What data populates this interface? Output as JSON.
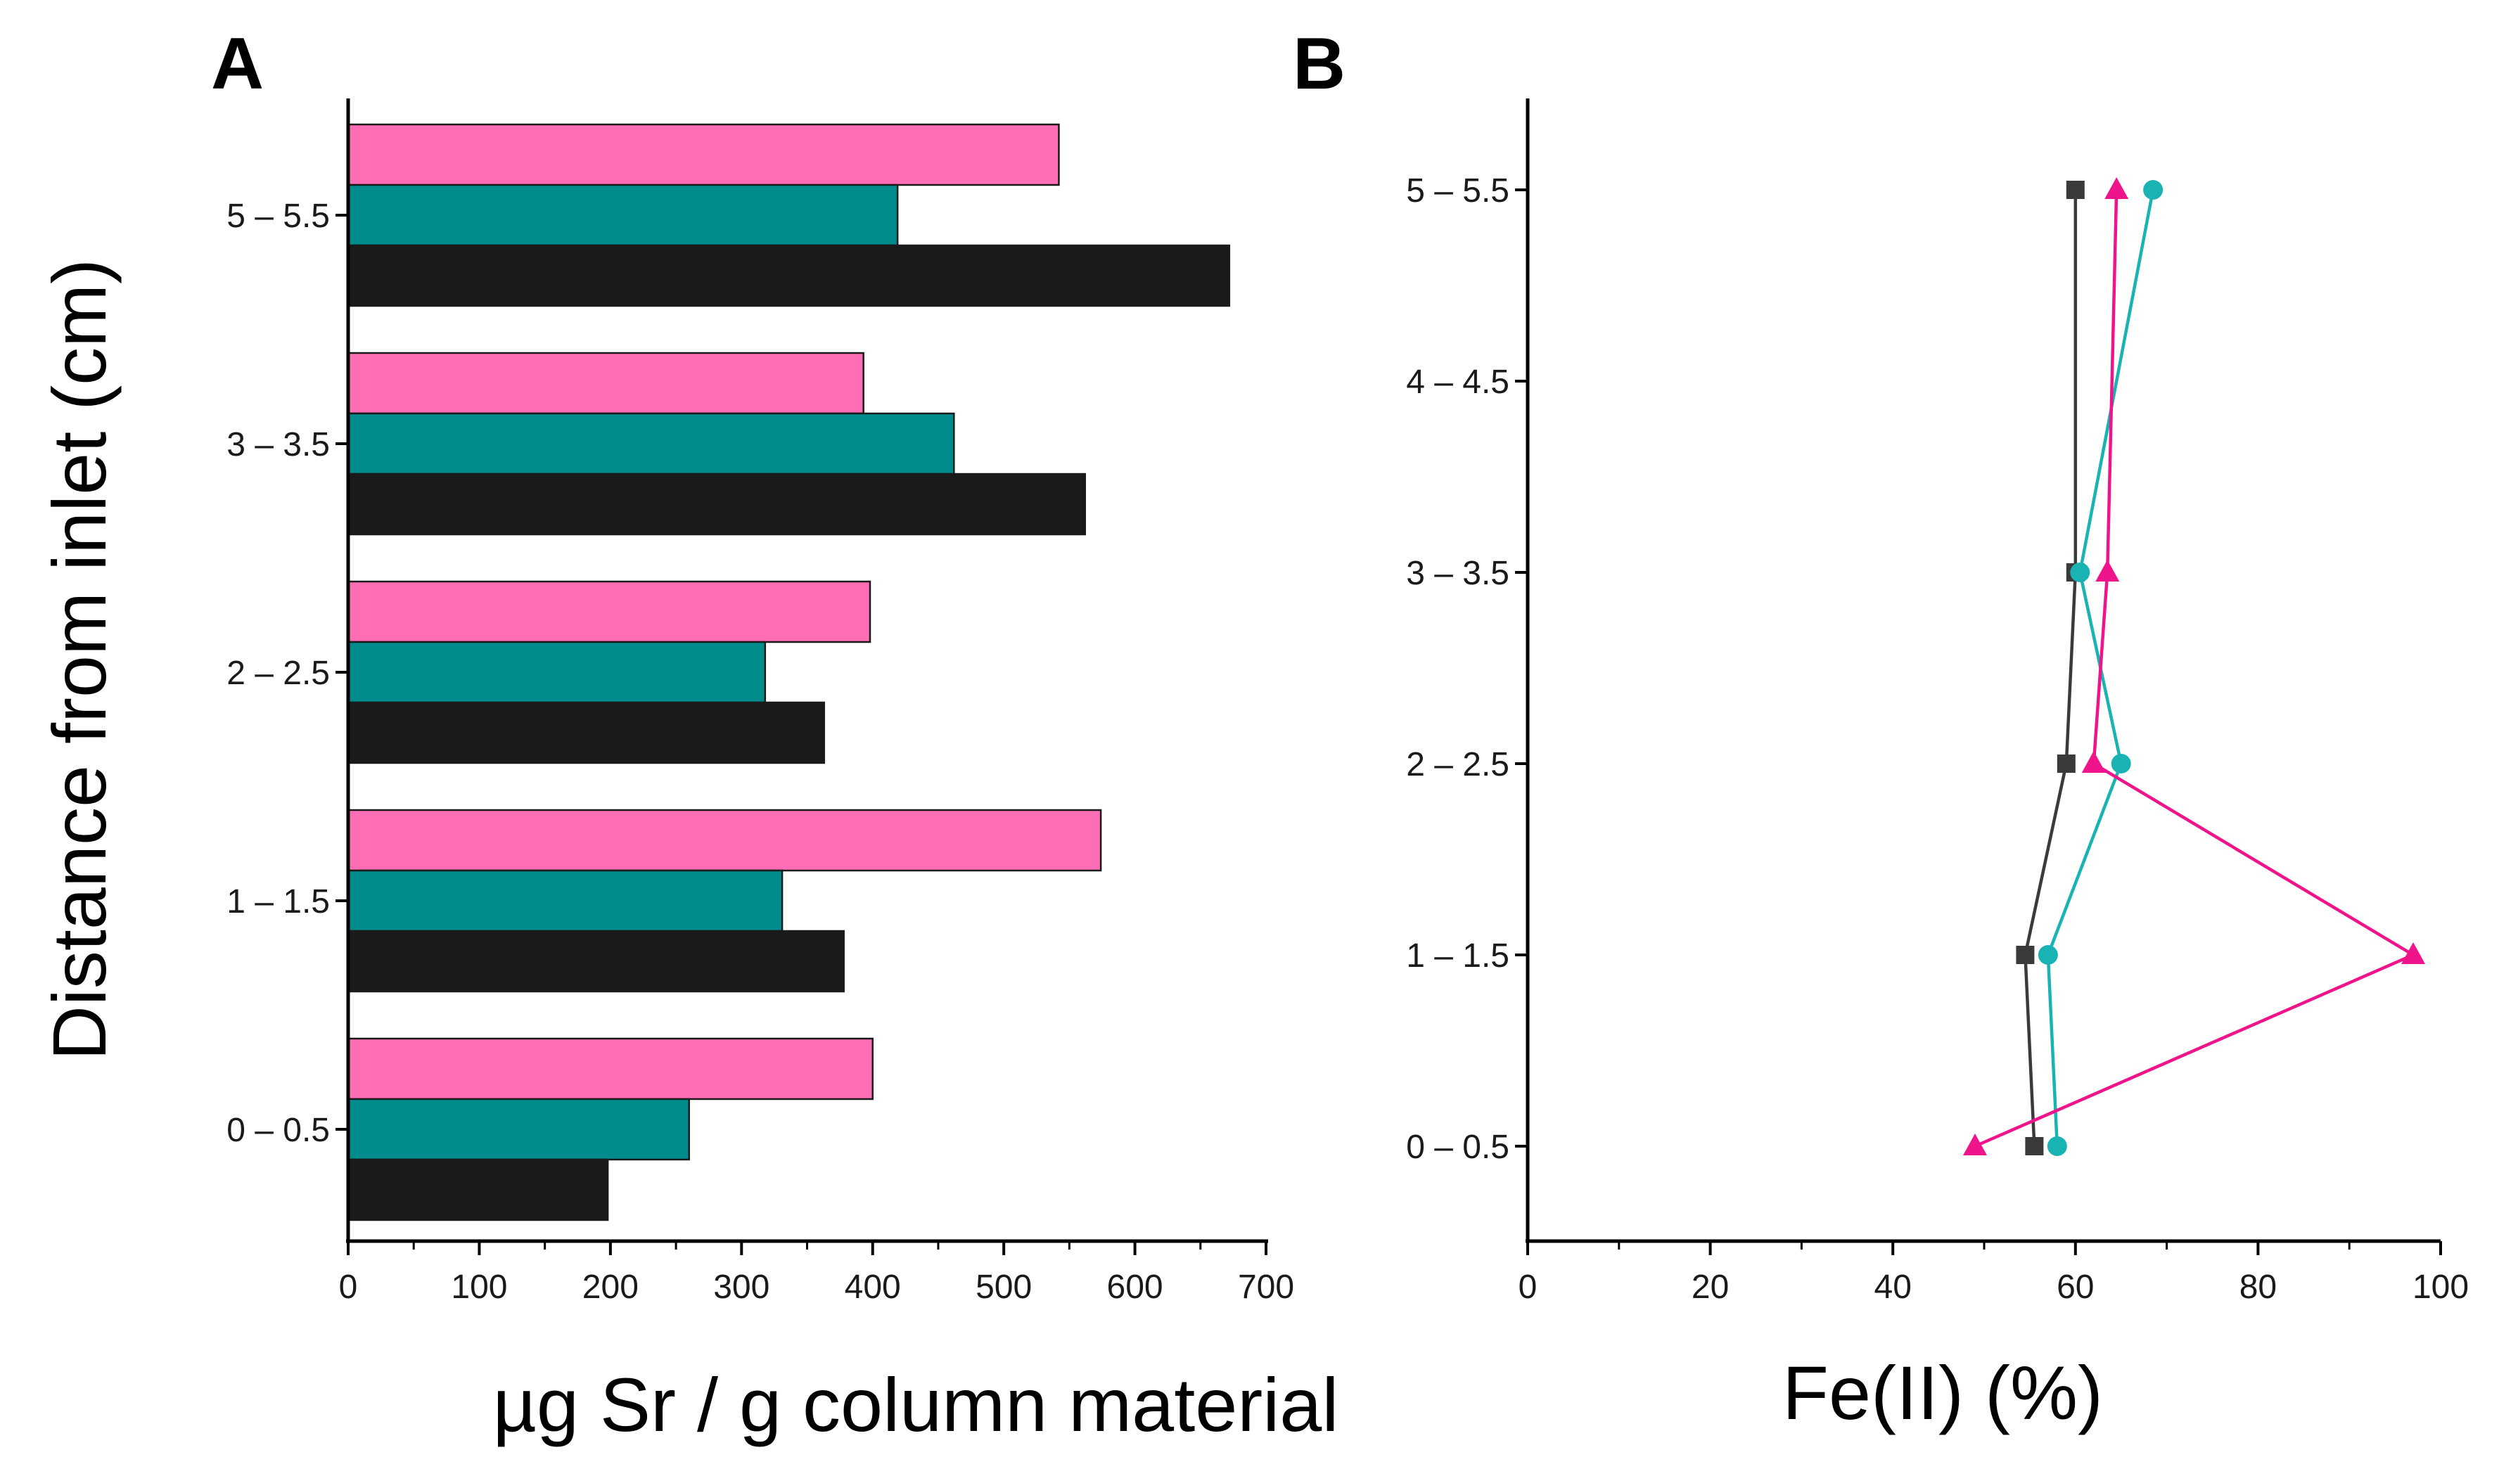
{
  "chart_data": [
    {
      "panel": "A",
      "type": "bar",
      "orientation": "horizontal",
      "categories": [
        "0 – 0.5",
        "1 – 1.5",
        "2 – 2.5",
        "3 – 3.5",
        "5 – 5.5"
      ],
      "ylabel": "Distance from inlet (cm)",
      "xlabel": "µg Sr / g column material",
      "xlim": [
        0,
        700
      ],
      "xticks": [
        0,
        100,
        200,
        300,
        400,
        500,
        600,
        700
      ],
      "series": [
        {
          "name": "black",
          "color": "#1a1a1a",
          "values": [
            198,
            378,
            363,
            562,
            672
          ]
        },
        {
          "name": "teal",
          "color": "#008c8c",
          "values": [
            260,
            331,
            318,
            462,
            419
          ]
        },
        {
          "name": "pink",
          "color": "#ff6eb4",
          "values": [
            400,
            574,
            398,
            393,
            542
          ]
        }
      ]
    },
    {
      "panel": "B",
      "type": "line",
      "categories": [
        "0 – 0.5",
        "1 – 1.5",
        "2 – 2.5",
        "3 – 3.5",
        "4 – 4.5",
        "5 – 5.5"
      ],
      "xlabel": "Fe(II) (%)",
      "xlim": [
        0,
        100
      ],
      "xticks": [
        0,
        20,
        40,
        60,
        80,
        100
      ],
      "series": [
        {
          "name": "black",
          "marker": "square",
          "color": "#3a3a3a",
          "positions": [
            0,
            1,
            2,
            3,
            5
          ],
          "values": [
            55.5,
            54.5,
            59,
            60,
            60
          ]
        },
        {
          "name": "teal",
          "marker": "circle",
          "color": "#1ab3b3",
          "positions": [
            0,
            1,
            2,
            3,
            5
          ],
          "values": [
            58,
            57,
            65,
            60.5,
            68.5
          ]
        },
        {
          "name": "pink",
          "marker": "triangle",
          "color": "#f0148c",
          "positions": [
            0,
            1,
            2,
            3,
            5
          ],
          "values": [
            49,
            97,
            62,
            63.5,
            64.5
          ]
        }
      ]
    }
  ]
}
